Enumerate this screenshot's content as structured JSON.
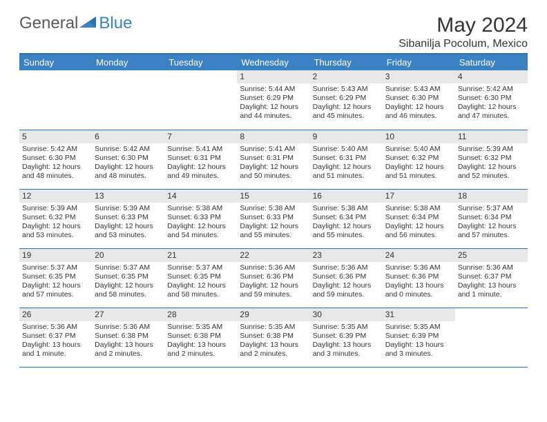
{
  "logo": {
    "part1": "General",
    "part2": "Blue"
  },
  "title": "May 2024",
  "location": "Sibanilja Pocolum, Mexico",
  "colors": {
    "header_bg": "#3b82c4",
    "header_text": "#ffffff",
    "border": "#2f6fa8",
    "daynum_bg": "#e8e8e8",
    "text": "#333333",
    "background": "#ffffff"
  },
  "typography": {
    "title_fontsize": 30,
    "location_fontsize": 16,
    "dow_fontsize": 13,
    "cell_fontsize": 10.5
  },
  "days_of_week": [
    "Sunday",
    "Monday",
    "Tuesday",
    "Wednesday",
    "Thursday",
    "Friday",
    "Saturday"
  ],
  "weeks": [
    [
      null,
      null,
      null,
      {
        "n": "1",
        "sr": "Sunrise: 5:44 AM",
        "ss": "Sunset: 6:29 PM",
        "d1": "Daylight: 12 hours",
        "d2": "and 44 minutes."
      },
      {
        "n": "2",
        "sr": "Sunrise: 5:43 AM",
        "ss": "Sunset: 6:29 PM",
        "d1": "Daylight: 12 hours",
        "d2": "and 45 minutes."
      },
      {
        "n": "3",
        "sr": "Sunrise: 5:43 AM",
        "ss": "Sunset: 6:30 PM",
        "d1": "Daylight: 12 hours",
        "d2": "and 46 minutes."
      },
      {
        "n": "4",
        "sr": "Sunrise: 5:42 AM",
        "ss": "Sunset: 6:30 PM",
        "d1": "Daylight: 12 hours",
        "d2": "and 47 minutes."
      }
    ],
    [
      {
        "n": "5",
        "sr": "Sunrise: 5:42 AM",
        "ss": "Sunset: 6:30 PM",
        "d1": "Daylight: 12 hours",
        "d2": "and 48 minutes."
      },
      {
        "n": "6",
        "sr": "Sunrise: 5:42 AM",
        "ss": "Sunset: 6:30 PM",
        "d1": "Daylight: 12 hours",
        "d2": "and 48 minutes."
      },
      {
        "n": "7",
        "sr": "Sunrise: 5:41 AM",
        "ss": "Sunset: 6:31 PM",
        "d1": "Daylight: 12 hours",
        "d2": "and 49 minutes."
      },
      {
        "n": "8",
        "sr": "Sunrise: 5:41 AM",
        "ss": "Sunset: 6:31 PM",
        "d1": "Daylight: 12 hours",
        "d2": "and 50 minutes."
      },
      {
        "n": "9",
        "sr": "Sunrise: 5:40 AM",
        "ss": "Sunset: 6:31 PM",
        "d1": "Daylight: 12 hours",
        "d2": "and 51 minutes."
      },
      {
        "n": "10",
        "sr": "Sunrise: 5:40 AM",
        "ss": "Sunset: 6:32 PM",
        "d1": "Daylight: 12 hours",
        "d2": "and 51 minutes."
      },
      {
        "n": "11",
        "sr": "Sunrise: 5:39 AM",
        "ss": "Sunset: 6:32 PM",
        "d1": "Daylight: 12 hours",
        "d2": "and 52 minutes."
      }
    ],
    [
      {
        "n": "12",
        "sr": "Sunrise: 5:39 AM",
        "ss": "Sunset: 6:32 PM",
        "d1": "Daylight: 12 hours",
        "d2": "and 53 minutes."
      },
      {
        "n": "13",
        "sr": "Sunrise: 5:39 AM",
        "ss": "Sunset: 6:33 PM",
        "d1": "Daylight: 12 hours",
        "d2": "and 53 minutes."
      },
      {
        "n": "14",
        "sr": "Sunrise: 5:38 AM",
        "ss": "Sunset: 6:33 PM",
        "d1": "Daylight: 12 hours",
        "d2": "and 54 minutes."
      },
      {
        "n": "15",
        "sr": "Sunrise: 5:38 AM",
        "ss": "Sunset: 6:33 PM",
        "d1": "Daylight: 12 hours",
        "d2": "and 55 minutes."
      },
      {
        "n": "16",
        "sr": "Sunrise: 5:38 AM",
        "ss": "Sunset: 6:34 PM",
        "d1": "Daylight: 12 hours",
        "d2": "and 55 minutes."
      },
      {
        "n": "17",
        "sr": "Sunrise: 5:38 AM",
        "ss": "Sunset: 6:34 PM",
        "d1": "Daylight: 12 hours",
        "d2": "and 56 minutes."
      },
      {
        "n": "18",
        "sr": "Sunrise: 5:37 AM",
        "ss": "Sunset: 6:34 PM",
        "d1": "Daylight: 12 hours",
        "d2": "and 57 minutes."
      }
    ],
    [
      {
        "n": "19",
        "sr": "Sunrise: 5:37 AM",
        "ss": "Sunset: 6:35 PM",
        "d1": "Daylight: 12 hours",
        "d2": "and 57 minutes."
      },
      {
        "n": "20",
        "sr": "Sunrise: 5:37 AM",
        "ss": "Sunset: 6:35 PM",
        "d1": "Daylight: 12 hours",
        "d2": "and 58 minutes."
      },
      {
        "n": "21",
        "sr": "Sunrise: 5:37 AM",
        "ss": "Sunset: 6:35 PM",
        "d1": "Daylight: 12 hours",
        "d2": "and 58 minutes."
      },
      {
        "n": "22",
        "sr": "Sunrise: 5:36 AM",
        "ss": "Sunset: 6:36 PM",
        "d1": "Daylight: 12 hours",
        "d2": "and 59 minutes."
      },
      {
        "n": "23",
        "sr": "Sunrise: 5:36 AM",
        "ss": "Sunset: 6:36 PM",
        "d1": "Daylight: 12 hours",
        "d2": "and 59 minutes."
      },
      {
        "n": "24",
        "sr": "Sunrise: 5:36 AM",
        "ss": "Sunset: 6:36 PM",
        "d1": "Daylight: 13 hours",
        "d2": "and 0 minutes."
      },
      {
        "n": "25",
        "sr": "Sunrise: 5:36 AM",
        "ss": "Sunset: 6:37 PM",
        "d1": "Daylight: 13 hours",
        "d2": "and 1 minute."
      }
    ],
    [
      {
        "n": "26",
        "sr": "Sunrise: 5:36 AM",
        "ss": "Sunset: 6:37 PM",
        "d1": "Daylight: 13 hours",
        "d2": "and 1 minute."
      },
      {
        "n": "27",
        "sr": "Sunrise: 5:36 AM",
        "ss": "Sunset: 6:38 PM",
        "d1": "Daylight: 13 hours",
        "d2": "and 2 minutes."
      },
      {
        "n": "28",
        "sr": "Sunrise: 5:35 AM",
        "ss": "Sunset: 6:38 PM",
        "d1": "Daylight: 13 hours",
        "d2": "and 2 minutes."
      },
      {
        "n": "29",
        "sr": "Sunrise: 5:35 AM",
        "ss": "Sunset: 6:38 PM",
        "d1": "Daylight: 13 hours",
        "d2": "and 2 minutes."
      },
      {
        "n": "30",
        "sr": "Sunrise: 5:35 AM",
        "ss": "Sunset: 6:39 PM",
        "d1": "Daylight: 13 hours",
        "d2": "and 3 minutes."
      },
      {
        "n": "31",
        "sr": "Sunrise: 5:35 AM",
        "ss": "Sunset: 6:39 PM",
        "d1": "Daylight: 13 hours",
        "d2": "and 3 minutes."
      },
      null
    ]
  ]
}
